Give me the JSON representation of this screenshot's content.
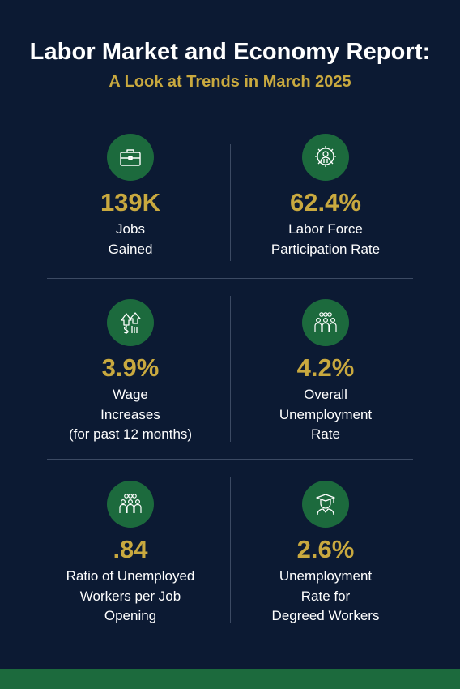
{
  "header": {
    "title": "Labor Market and Economy Report:",
    "subtitle": "A Look at Trends in March 2025"
  },
  "colors": {
    "background": "#0c1a33",
    "accent_gold": "#c9a93f",
    "icon_green": "#1c6a3d"
  },
  "stats": [
    {
      "icon": "briefcase-icon",
      "value": "139K",
      "label_lines": [
        "Jobs",
        "Gained"
      ]
    },
    {
      "icon": "gear-person-icon",
      "value": "62.4%",
      "label_lines": [
        "Labor Force",
        "Participation Rate"
      ]
    },
    {
      "icon": "money-arrow-icon",
      "value": "3.9%",
      "label_lines": [
        "Wage",
        "Increases",
        "(for past 12 months)"
      ]
    },
    {
      "icon": "group-people-icon",
      "value": "4.2%",
      "label_lines": [
        "Overall",
        "Unemployment",
        "Rate"
      ]
    },
    {
      "icon": "group-people-icon",
      "value": ".84",
      "label_lines": [
        "Ratio of Unemployed",
        "Workers per Job",
        "Opening"
      ]
    },
    {
      "icon": "graduate-icon",
      "value": "2.6%",
      "label_lines": [
        "Unemployment",
        "Rate for",
        "Degreed Workers"
      ]
    }
  ]
}
